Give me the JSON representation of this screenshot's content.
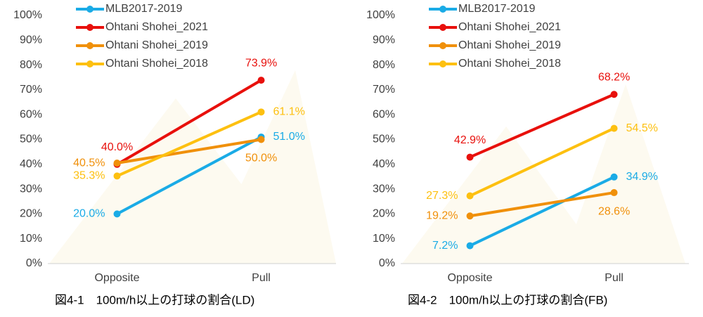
{
  "chart_data": [
    {
      "type": "line",
      "caption": "図4-1　100m/h以上の打球の割合(LD)",
      "categories": [
        "Opposite",
        "Pull"
      ],
      "series": [
        {
          "name": "MLB2017-2019",
          "color": "#1aabe6",
          "values": [
            20.0,
            51.0
          ],
          "value_labels": [
            "20.0%",
            "51.0%"
          ]
        },
        {
          "name": "Ohtani Shohei_2021",
          "color": "#e8100c",
          "values": [
            40.0,
            73.9
          ],
          "value_labels": [
            "40.0%",
            "73.9%"
          ]
        },
        {
          "name": "Ohtani Shohei_2019",
          "color": "#f0900a",
          "values": [
            40.5,
            50.0
          ],
          "value_labels": [
            "40.5%",
            "50.0%"
          ]
        },
        {
          "name": "Ohtani Shohei_2018",
          "color": "#fdc010",
          "values": [
            35.3,
            61.1
          ],
          "value_labels": [
            "35.3%",
            "61.1%"
          ]
        }
      ],
      "ylim": [
        0,
        100
      ],
      "yticks": [
        {
          "value": 0,
          "label": "0%"
        },
        {
          "value": 10,
          "label": "10%"
        },
        {
          "value": 20,
          "label": "20%"
        },
        {
          "value": 30,
          "label": "30%"
        },
        {
          "value": 40,
          "label": "40%"
        },
        {
          "value": 50,
          "label": "50%"
        },
        {
          "value": 60,
          "label": "60%"
        },
        {
          "value": 70,
          "label": "70%"
        },
        {
          "value": 80,
          "label": "80%"
        },
        {
          "value": 90,
          "label": "90%"
        },
        {
          "value": 100,
          "label": "100%"
        }
      ],
      "legend": "top-left"
    },
    {
      "type": "line",
      "caption": "図4-2　100m/h以上の打球の割合(FB)",
      "categories": [
        "Opposite",
        "Pull"
      ],
      "series": [
        {
          "name": "MLB2017-2019",
          "color": "#1aabe6",
          "values": [
            7.2,
            34.9
          ],
          "value_labels": [
            "7.2%",
            "34.9%"
          ]
        },
        {
          "name": "Ohtani Shohei_2021",
          "color": "#e8100c",
          "values": [
            42.9,
            68.2
          ],
          "value_labels": [
            "42.9%",
            "68.2%"
          ]
        },
        {
          "name": "Ohtani Shohei_2019",
          "color": "#f0900a",
          "values": [
            19.2,
            28.6
          ],
          "value_labels": [
            "19.2%",
            "28.6%"
          ]
        },
        {
          "name": "Ohtani Shohei_2018",
          "color": "#fdc010",
          "values": [
            27.3,
            54.5
          ],
          "value_labels": [
            "27.3%",
            "54.5%"
          ]
        }
      ],
      "ylim": [
        0,
        100
      ],
      "yticks": [
        {
          "value": 0,
          "label": "0%"
        },
        {
          "value": 10,
          "label": "10%"
        },
        {
          "value": 20,
          "label": "20%"
        },
        {
          "value": 30,
          "label": "30%"
        },
        {
          "value": 40,
          "label": "40%"
        },
        {
          "value": 50,
          "label": "50%"
        },
        {
          "value": 60,
          "label": "60%"
        },
        {
          "value": 70,
          "label": "70%"
        },
        {
          "value": 80,
          "label": "80%"
        },
        {
          "value": 90,
          "label": "90%"
        },
        {
          "value": 100,
          "label": "100%"
        }
      ],
      "legend": "top-left"
    }
  ]
}
